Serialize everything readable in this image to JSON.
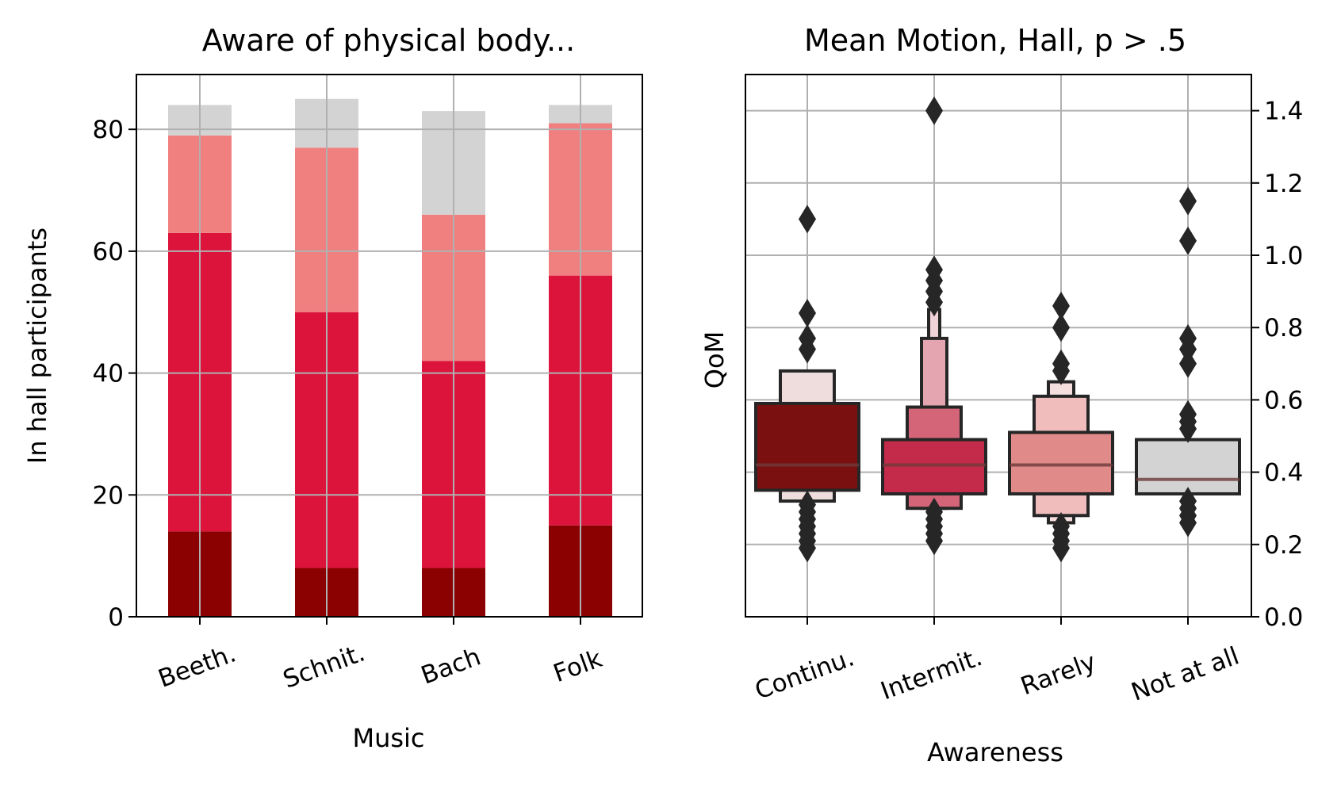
{
  "chart_data": [
    {
      "type": "bar",
      "stacked": true,
      "title": "Aware of physical body...",
      "xlabel": "Music",
      "ylabel": "In hall participants",
      "categories": [
        "Beeth.",
        "Schnit.",
        "Bach",
        "Folk"
      ],
      "ylim": [
        0,
        89
      ],
      "yticks": [
        0,
        20,
        40,
        60,
        80
      ],
      "grid": true,
      "series": [
        {
          "color": "#8b0000",
          "values": [
            14,
            8,
            8,
            15
          ]
        },
        {
          "color": "#dc143c",
          "values": [
            49,
            42,
            34,
            41
          ]
        },
        {
          "color": "#f08080",
          "values": [
            16,
            27,
            24,
            25
          ]
        },
        {
          "color": "#d3d3d3",
          "values": [
            5,
            8,
            17,
            3
          ]
        }
      ]
    },
    {
      "type": "boxen",
      "title": "Mean Motion, Hall, p > .5",
      "xlabel": "Awareness",
      "ylabel": "QoM",
      "categories": [
        "Continu.",
        "Intermit.",
        "Rarely",
        "Not at all"
      ],
      "ylim": [
        0,
        1.5
      ],
      "yticks": [
        "0.0",
        "0.2",
        "0.4",
        "0.6",
        "0.8",
        "1.0",
        "1.2",
        "1.4"
      ],
      "yaxis_side": "right",
      "grid": true,
      "groups": [
        {
          "color": "#7b1010",
          "median": 0.42,
          "levels": [
            {
              "lo": 0.35,
              "hi": 0.59
            },
            {
              "lo": 0.32,
              "hi": 0.68,
              "color": "#efdcdc"
            }
          ],
          "outliers": [
            0.19,
            0.21,
            0.23,
            0.25,
            0.27,
            0.29,
            0.31,
            0.74,
            0.77,
            0.84,
            1.1
          ]
        },
        {
          "color": "#c42a4a",
          "median": 0.42,
          "levels": [
            {
              "lo": 0.34,
              "hi": 0.49
            },
            {
              "lo": 0.3,
              "hi": 0.58,
              "color": "#d46478"
            },
            {
              "lo": 0.3,
              "hi": 0.77,
              "color": "#e4a4b0"
            },
            {
              "lo": 0.3,
              "hi": 0.85,
              "color": "#efd2d8"
            }
          ],
          "outliers": [
            0.21,
            0.23,
            0.25,
            0.27,
            0.29,
            0.87,
            0.9,
            0.93,
            0.96,
            1.4
          ]
        },
        {
          "color": "#e08a8a",
          "median": 0.42,
          "levels": [
            {
              "lo": 0.34,
              "hi": 0.51
            },
            {
              "lo": 0.28,
              "hi": 0.61,
              "color": "#f0bcbc"
            },
            {
              "lo": 0.26,
              "hi": 0.65,
              "color": "#f6dede"
            }
          ],
          "outliers": [
            0.19,
            0.21,
            0.23,
            0.25,
            0.68,
            0.7,
            0.8,
            0.86
          ]
        },
        {
          "color": "#d3d3d3",
          "median": 0.38,
          "levels": [
            {
              "lo": 0.34,
              "hi": 0.49
            }
          ],
          "outliers": [
            0.26,
            0.28,
            0.3,
            0.32,
            0.52,
            0.54,
            0.56,
            0.7,
            0.74,
            0.77,
            1.04,
            1.15
          ]
        }
      ]
    }
  ]
}
